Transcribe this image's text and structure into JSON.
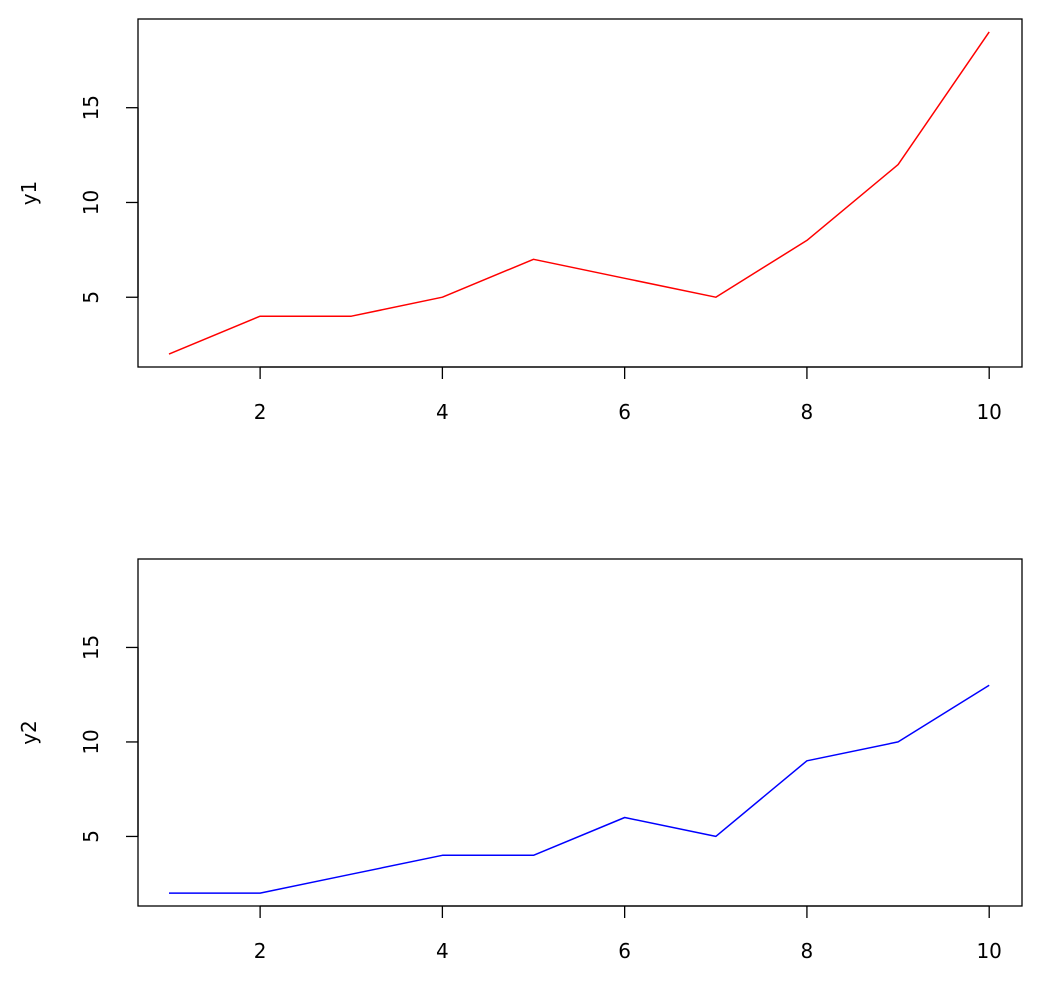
{
  "chart_data": [
    {
      "type": "line",
      "x": [
        1,
        2,
        3,
        4,
        5,
        6,
        7,
        8,
        9,
        10
      ],
      "series": [
        {
          "values": [
            2,
            4,
            4,
            5,
            7,
            6,
            5,
            8,
            12,
            19
          ],
          "color": "#ff0000"
        }
      ],
      "xlabel": "",
      "ylabel": "y1",
      "xlim": [
        0.66,
        10.36
      ],
      "ylim": [
        1.32,
        19.68
      ],
      "xticks": [
        2,
        4,
        6,
        8,
        10
      ],
      "yticks": [
        5,
        10,
        15
      ],
      "grid": false,
      "legend": "none"
    },
    {
      "type": "line",
      "x": [
        1,
        2,
        3,
        4,
        5,
        6,
        7,
        8,
        9,
        10
      ],
      "series": [
        {
          "values": [
            2,
            2,
            3,
            4,
            4,
            6,
            5,
            9,
            10,
            13
          ],
          "color": "#0000ff"
        }
      ],
      "xlabel": "",
      "ylabel": "y2",
      "xlim": [
        0.66,
        10.36
      ],
      "ylim": [
        1.32,
        19.68
      ],
      "xticks": [
        2,
        4,
        6,
        8,
        10
      ],
      "yticks": [
        5,
        10,
        15
      ],
      "grid": false,
      "legend": "none"
    }
  ]
}
